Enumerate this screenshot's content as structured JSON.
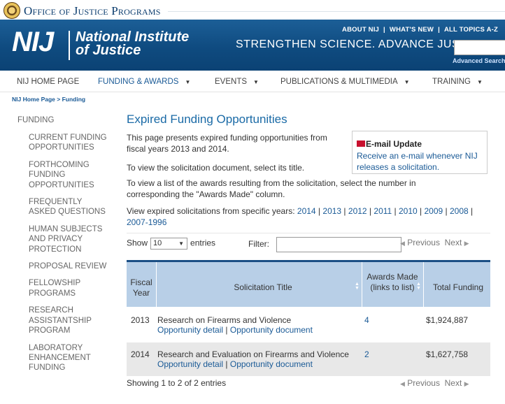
{
  "ojp": {
    "title": "Office of Justice Programs"
  },
  "header": {
    "logo_abbr": "NIJ",
    "logo_line1": "National Institute",
    "logo_line2": "of Justice",
    "top_links": [
      "ABOUT NIJ",
      "WHAT'S NEW",
      "ALL TOPICS A-Z"
    ],
    "tagline": "STRENGTHEN SCIENCE. ADVANCE JUSTICE.",
    "advanced_search": "Advanced Search"
  },
  "nav": {
    "items": [
      "NIJ HOME PAGE",
      "FUNDING & AWARDS",
      "EVENTS",
      "PUBLICATIONS & MULTIMEDIA",
      "TRAINING"
    ]
  },
  "breadcrumb": "NIJ Home Page > Funding",
  "sidebar": {
    "heading": "FUNDING",
    "items": [
      "CURRENT FUNDING OPPORTUNITIES",
      "FORTHCOMING FUNDING OPPORTUNITIES",
      "FREQUENTLY ASKED QUESTIONS",
      "HUMAN SUBJECTS AND PRIVACY PROTECTION",
      "PROPOSAL REVIEW",
      "FELLOWSHIP PROGRAMS",
      "RESEARCH ASSISTANTSHIP PROGRAM",
      "LABORATORY ENHANCEMENT FUNDING"
    ]
  },
  "main": {
    "title": "Expired Funding Opportunities",
    "intro": "This page presents expired funding opportunities from fiscal years 2013 and 2014.",
    "view_doc": "To view the solicitation document, select its title.",
    "view_awards": "To view a list of the awards resulting from the solicitation, select the number in corresponding the \"Awards Made\" column.",
    "years_label": "View expired solicitations from specific years:",
    "years": [
      "2014",
      "2013",
      "2012",
      "2011",
      "2010",
      "2009",
      "2008",
      "2007-1996"
    ]
  },
  "email_box": {
    "title": "E-mail Update",
    "text": "Receive an e-mail whenever NIJ releases a solicitation."
  },
  "table_controls": {
    "show_label": "Show",
    "entries_value": "10",
    "entries_label": "entries",
    "filter_label": "Filter:",
    "filter_value": "",
    "previous": "Previous",
    "next": "Next"
  },
  "table": {
    "columns": [
      "Fiscal Year",
      "Solicitation Title",
      "Awards Made (links to list)",
      "Total Funding"
    ],
    "rows": [
      {
        "year": "2013",
        "title": "Research on Firearms and Violence",
        "detail": "Opportunity detail",
        "document": "Opportunity document",
        "awards": "4",
        "funding": "$1,924,887"
      },
      {
        "year": "2014",
        "title": "Research and Evaluation on Firearms and Violence",
        "detail": "Opportunity detail",
        "document": "Opportunity document",
        "awards": "2",
        "funding": "$1,627,758"
      }
    ]
  },
  "info": "Showing 1 to 2 of 2 entries",
  "colors": {
    "header_blue": "#0f4b80",
    "link": "#1a5a96",
    "table_head": "#b8cfe7",
    "table_border": "#1b4f85"
  }
}
